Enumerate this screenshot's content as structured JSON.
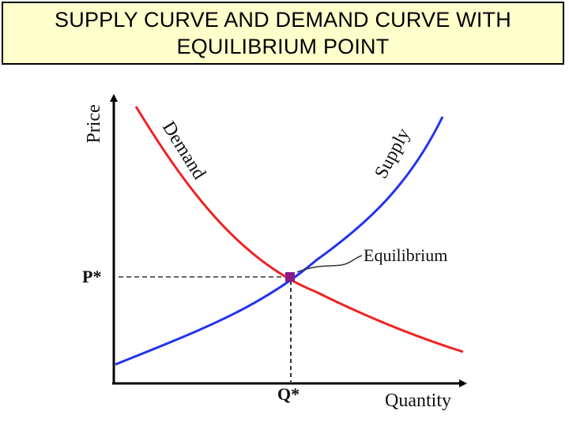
{
  "title": "SUPPLY CURVE AND DEMAND CURVE WITH\nEQUILIBRIUM POINT",
  "labels": {
    "y_axis": "Price",
    "x_axis": "Quantity",
    "price_equilibrium": "P*",
    "quantity_equilibrium": "Q*",
    "equilibrium": "Equilibrium",
    "demand": "Demand",
    "supply": "Supply"
  },
  "colors": {
    "demand": "#ee2222",
    "supply": "#2233ee",
    "equilibrium_point": "#8a1a8a",
    "title_background": "#ffffcc"
  },
  "curves": [
    {
      "name": "Demand",
      "shape": "downward-sloping, convex"
    },
    {
      "name": "Supply",
      "shape": "upward-sloping, convex"
    }
  ]
}
